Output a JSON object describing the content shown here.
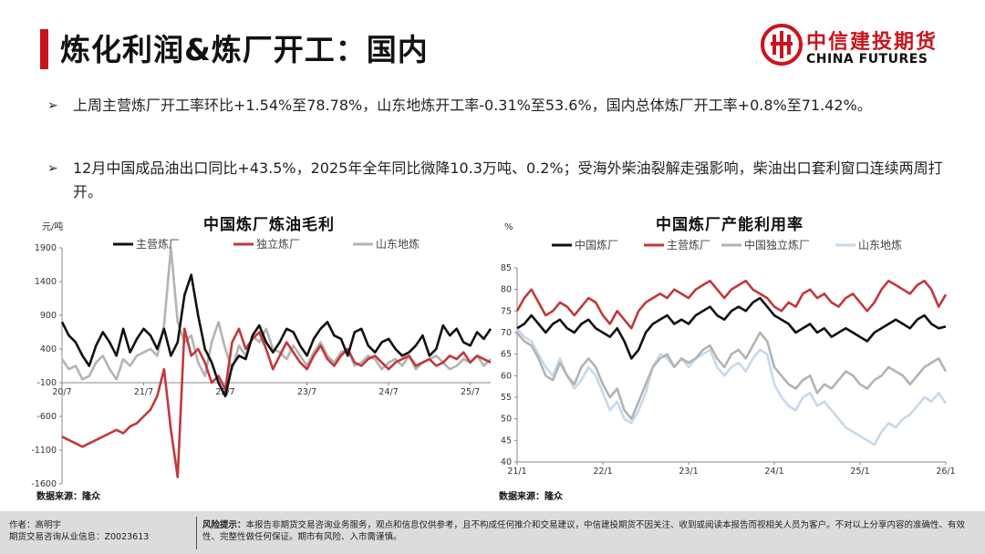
{
  "page": {
    "title": "炼化利润&炼厂开工：国内"
  },
  "logo": {
    "cn": "中信建投期货",
    "en": "CHINA FUTURES"
  },
  "bullets": [
    "上周主营炼厂开工率环比+1.54%至78.78%，山东地炼开工率-0.31%至53.6%，国内总体炼厂开工率+0.8%至71.42%。",
    "12月中国成品油出口同比+43.5%，2025年全年同比微降10.3万吨、0.2%；受海外柴油裂解走强影响，柴油出口套利窗口连续两周打开。"
  ],
  "footer": {
    "author": "作者：高明宇",
    "license": "期货交易咨询从业信息：Z0023613",
    "risk_label": "风险提示：",
    "risk_text": "本报告非期货交易咨询业务服务，观点和信息仅供参考，且不构成任何推介和交易建议，中信建投期货不因关注、收到或阅读本报告而视相关人员为客户。不对以上分享内容的准确性、有效性、完整性做任何保证。期市有风险、入市需谨慎。"
  },
  "colors": {
    "main": "#111111",
    "independent": "#c0393b",
    "shandong": "#b3b3b3",
    "china_indep": "#b3b3b3",
    "shandong_util": "#c5d9ee",
    "accent": "#c8151d"
  },
  "chart_data": [
    {
      "type": "line",
      "title": "中国炼厂炼油毛利",
      "ylabel": "元/吨",
      "source": "数据来源：隆众",
      "ylim": [
        -1600,
        1900
      ],
      "yticks": [
        1900,
        1400,
        900,
        400,
        -100,
        -600,
        -1100,
        -1600
      ],
      "xlim": [
        0,
        63
      ],
      "xticks": [
        {
          "x": 0,
          "label": "20/7"
        },
        {
          "x": 12,
          "label": "21/7"
        },
        {
          "x": 24,
          "label": "22/7"
        },
        {
          "x": 36,
          "label": "23/7"
        },
        {
          "x": 48,
          "label": "24/7"
        },
        {
          "x": 60,
          "label": "25/7"
        }
      ],
      "x": [
        0,
        1,
        2,
        3,
        4,
        5,
        6,
        7,
        8,
        9,
        10,
        11,
        12,
        13,
        14,
        15,
        16,
        17,
        18,
        19,
        20,
        21,
        22,
        23,
        24,
        25,
        26,
        27,
        28,
        29,
        30,
        31,
        32,
        33,
        34,
        35,
        36,
        37,
        38,
        39,
        40,
        41,
        42,
        43,
        44,
        45,
        46,
        47,
        48,
        49,
        50,
        51,
        52,
        53,
        54,
        55,
        56,
        57,
        58,
        59,
        60,
        61,
        62,
        63
      ],
      "series": [
        {
          "name": "主营炼厂",
          "color_key": "main",
          "values": [
            800,
            600,
            500,
            300,
            150,
            450,
            650,
            500,
            300,
            700,
            350,
            550,
            700,
            600,
            400,
            700,
            300,
            500,
            1200,
            1500,
            900,
            400,
            200,
            -100,
            -300,
            150,
            300,
            250,
            600,
            750,
            500,
            350,
            500,
            700,
            650,
            450,
            300,
            550,
            700,
            800,
            600,
            550,
            300,
            650,
            700,
            450,
            350,
            500,
            550,
            400,
            300,
            350,
            450,
            600,
            300,
            400,
            750,
            600,
            700,
            500,
            450,
            650,
            550,
            700
          ]
        },
        {
          "name": "独立炼厂",
          "color_key": "independent",
          "values": [
            -900,
            -950,
            -1000,
            -1050,
            -1000,
            -950,
            -900,
            -850,
            -800,
            -850,
            -750,
            -700,
            -600,
            -500,
            -300,
            100,
            -800,
            -1500,
            700,
            300,
            400,
            200,
            -100,
            0,
            -200,
            500,
            700,
            400,
            550,
            650,
            400,
            100,
            300,
            500,
            350,
            200,
            100,
            300,
            450,
            250,
            150,
            300,
            400,
            200,
            150,
            250,
            300,
            200,
            100,
            200,
            250,
            300,
            150,
            200,
            250,
            150,
            200,
            300,
            250,
            350,
            200,
            300,
            250,
            200
          ]
        },
        {
          "name": "山东地炼",
          "color_key": "shandong",
          "values": [
            250,
            100,
            150,
            -50,
            0,
            200,
            300,
            100,
            -50,
            250,
            150,
            300,
            350,
            400,
            300,
            750,
            1900,
            800,
            500,
            600,
            200,
            0,
            500,
            800,
            400,
            100,
            450,
            300,
            600,
            500,
            700,
            400,
            350,
            250,
            450,
            300,
            150,
            350,
            500,
            300,
            200,
            350,
            400,
            150,
            200,
            300,
            250,
            100,
            200,
            250,
            150,
            300,
            100,
            200,
            250,
            300,
            200,
            100,
            150,
            250,
            200,
            300,
            150,
            250
          ]
        }
      ]
    },
    {
      "type": "line",
      "title": "中国炼厂产能利用率",
      "ylabel": "%",
      "source": "数据来源：隆众",
      "ylim": [
        40,
        85
      ],
      "yticks": [
        85,
        80,
        75,
        70,
        65,
        60,
        55,
        50,
        45,
        40
      ],
      "xlim": [
        0,
        60
      ],
      "xticks": [
        {
          "x": 0,
          "label": "21/1"
        },
        {
          "x": 12,
          "label": "22/1"
        },
        {
          "x": 24,
          "label": "23/1"
        },
        {
          "x": 36,
          "label": "24/1"
        },
        {
          "x": 48,
          "label": "25/1"
        },
        {
          "x": 60,
          "label": "26/1"
        }
      ],
      "x": [
        0,
        1,
        2,
        3,
        4,
        5,
        6,
        7,
        8,
        9,
        10,
        11,
        12,
        13,
        14,
        15,
        16,
        17,
        18,
        19,
        20,
        21,
        22,
        23,
        24,
        25,
        26,
        27,
        28,
        29,
        30,
        31,
        32,
        33,
        34,
        35,
        36,
        37,
        38,
        39,
        40,
        41,
        42,
        43,
        44,
        45,
        46,
        47,
        48,
        49,
        50,
        51,
        52,
        53,
        54,
        55,
        56,
        57,
        58,
        59,
        60
      ],
      "series": [
        {
          "name": "中国炼厂",
          "color_key": "main",
          "values": [
            71,
            72,
            74,
            72,
            70,
            72,
            73,
            71,
            70,
            72,
            73,
            71,
            70,
            69,
            71,
            68,
            64,
            66,
            70,
            72,
            73,
            74,
            72,
            73,
            72,
            74,
            75,
            76,
            74,
            73,
            75,
            76,
            75,
            77,
            78,
            76,
            74,
            73,
            72,
            70,
            71,
            72,
            70,
            71,
            69,
            70,
            71,
            70,
            69,
            68,
            70,
            71,
            72,
            73,
            72,
            71,
            73,
            74,
            72,
            71,
            71.4
          ]
        },
        {
          "name": "主营炼厂",
          "color_key": "independent",
          "values": [
            75,
            78,
            80,
            77,
            74,
            75,
            77,
            76,
            74,
            76,
            78,
            77,
            74,
            72,
            75,
            73,
            71,
            75,
            77,
            78,
            79,
            78,
            80,
            79,
            78,
            80,
            81,
            82,
            80,
            78,
            80,
            81,
            82,
            80,
            79,
            78,
            76,
            75,
            77,
            76,
            79,
            80,
            78,
            79,
            77,
            76,
            78,
            79,
            77,
            75,
            77,
            80,
            82,
            81,
            80,
            79,
            81,
            82,
            80,
            76,
            78.8
          ]
        },
        {
          "name": "中国独立炼厂",
          "color_key": "china_indep",
          "values": [
            70,
            68,
            67,
            64,
            60,
            59,
            63,
            60,
            58,
            62,
            64,
            62,
            58,
            55,
            57,
            52,
            50,
            54,
            58,
            62,
            64,
            65,
            62,
            64,
            63,
            64,
            66,
            67,
            64,
            62,
            65,
            66,
            64,
            67,
            70,
            68,
            62,
            60,
            58,
            57,
            59,
            60,
            56,
            58,
            57,
            59,
            61,
            60,
            58,
            57,
            59,
            60,
            62,
            61,
            60,
            58,
            60,
            62,
            63,
            64,
            61
          ]
        },
        {
          "name": "山东地炼",
          "color_key": "shandong_util",
          "values": [
            71,
            69,
            68,
            65,
            62,
            60,
            64,
            60,
            57,
            59,
            62,
            60,
            56,
            52,
            54,
            50,
            49,
            52,
            56,
            62,
            65,
            64,
            62,
            64,
            62,
            64,
            65,
            66,
            62,
            60,
            62,
            63,
            61,
            64,
            66,
            65,
            58,
            55,
            53,
            52,
            55,
            56,
            53,
            54,
            52,
            50,
            48,
            47,
            46,
            45,
            44,
            47,
            49,
            48,
            50,
            51,
            53,
            55,
            54,
            56,
            53.6
          ]
        }
      ]
    }
  ]
}
